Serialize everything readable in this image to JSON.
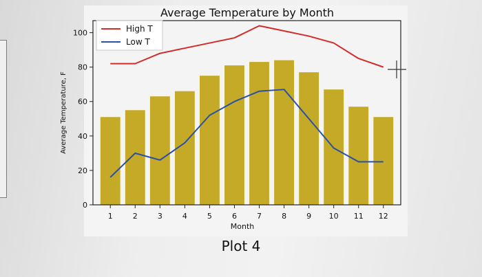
{
  "caption": "Plot 4",
  "chart_data": {
    "type": "bar",
    "title": "Average Temperature by Month",
    "xlabel": "Month",
    "ylabel": "Average Temperature, F",
    "categories": [
      "1",
      "2",
      "3",
      "4",
      "5",
      "6",
      "7",
      "8",
      "9",
      "10",
      "11",
      "12"
    ],
    "x": [
      1,
      2,
      3,
      4,
      5,
      6,
      7,
      8,
      9,
      10,
      11,
      12
    ],
    "bars": {
      "values": [
        51,
        55,
        63,
        66,
        75,
        81,
        83,
        84,
        77,
        67,
        57,
        51
      ],
      "color": "#c4aa26"
    },
    "series": [
      {
        "name": "High T",
        "type": "line",
        "color": "#d42a2a",
        "values": [
          82,
          82,
          88,
          91,
          94,
          97,
          104,
          101,
          98,
          94,
          85,
          80
        ]
      },
      {
        "name": "Low T",
        "type": "line",
        "color": "#2a4fa8",
        "values": [
          16,
          30,
          26,
          36,
          52,
          60,
          66,
          67,
          50,
          33,
          25,
          25
        ]
      }
    ],
    "yticks": [
      0,
      20,
      40,
      60,
      80,
      100
    ],
    "ylim": [
      0,
      107
    ],
    "xlim": [
      0.3,
      12.7
    ],
    "legend": "top-left",
    "grid": false
  }
}
